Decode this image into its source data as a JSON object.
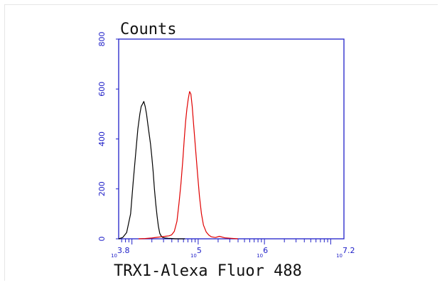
{
  "chart_data": {
    "type": "line",
    "title": "Counts",
    "xlabel": "TRX1-Alexa Fluor 488",
    "ylabel": "",
    "x_scale": "log10",
    "xlim_log10": [
      3.8,
      7.2
    ],
    "ylim": [
      0,
      800
    ],
    "y_ticks": [
      "0",
      "200",
      "400",
      "600",
      "800"
    ],
    "x_ticks": [
      {
        "base": "10",
        "exp": "3.8",
        "log": 3.8
      },
      {
        "base": "10",
        "exp": "5",
        "log": 5
      },
      {
        "base": "10",
        "exp": "6",
        "log": 6
      },
      {
        "base": "10",
        "exp": "7.2",
        "log": 7.2
      }
    ],
    "grid": false,
    "legend": "none",
    "series": [
      {
        "color": "#000000",
        "x_log10": [
          3.8,
          3.86,
          3.92,
          3.98,
          4.02,
          4.06,
          4.09,
          4.12,
          4.14,
          4.16,
          4.18,
          4.2,
          4.22,
          4.24,
          4.26,
          4.28,
          4.3,
          4.32,
          4.34,
          4.36,
          4.38,
          4.4,
          4.42,
          4.44,
          4.46,
          4.5,
          4.55,
          4.6,
          4.66,
          4.72,
          4.8
        ],
        "y": [
          0,
          5,
          25,
          100,
          230,
          350,
          440,
          500,
          530,
          540,
          550,
          530,
          500,
          460,
          420,
          380,
          330,
          270,
          200,
          140,
          90,
          50,
          22,
          12,
          6,
          3,
          2,
          1,
          0,
          0,
          0
        ]
      },
      {
        "color": "#e00000",
        "x_log10": [
          4.1,
          4.2,
          4.3,
          4.38,
          4.44,
          4.5,
          4.56,
          4.6,
          4.64,
          4.68,
          4.71,
          4.74,
          4.77,
          4.79,
          4.81,
          4.83,
          4.85,
          4.87,
          4.89,
          4.91,
          4.93,
          4.96,
          4.99,
          5.02,
          5.05,
          5.08,
          5.12,
          5.16,
          5.2,
          5.26,
          5.32,
          5.4,
          5.5,
          5.6
        ],
        "y": [
          0,
          1,
          3,
          6,
          8,
          10,
          12,
          16,
          30,
          70,
          140,
          220,
          320,
          400,
          470,
          520,
          560,
          590,
          580,
          530,
          460,
          360,
          260,
          170,
          100,
          55,
          28,
          15,
          8,
          5,
          10,
          4,
          2,
          0
        ]
      }
    ]
  },
  "colors": {
    "axis": "#2020c8",
    "series_black": "#000000",
    "series_red": "#e00000"
  }
}
